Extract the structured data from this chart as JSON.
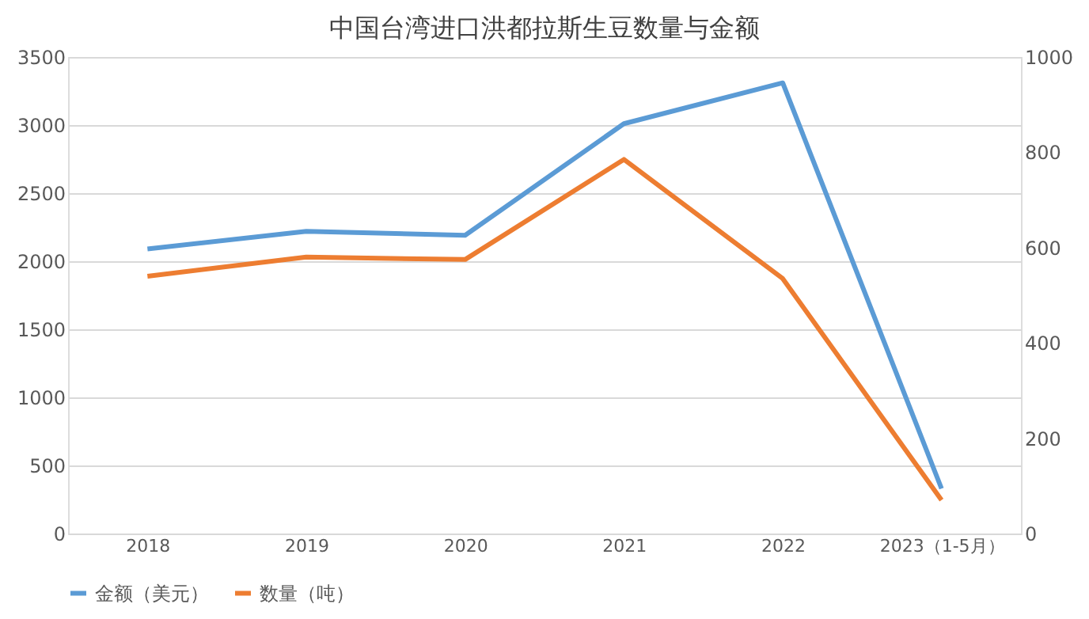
{
  "chart_data": {
    "type": "line",
    "title": "中国台湾进口洪都拉斯生豆数量与金额",
    "categories": [
      "2018",
      "2019",
      "2020",
      "2021",
      "2022",
      "2023（1-5月）"
    ],
    "series": [
      {
        "name": "金额（美元）",
        "color": "#5b9bd5",
        "values": [
          2090,
          2220,
          2190,
          3010,
          3310,
          330
        ]
      },
      {
        "name": "数量（吨）",
        "color": "#ed7d31",
        "axis": "y2",
        "values": [
          540,
          580,
          575,
          785,
          535,
          70
        ]
      }
    ],
    "ylim": [
      0,
      3500
    ],
    "yticks": [
      0,
      500,
      1000,
      1500,
      2000,
      2500,
      3000,
      3500
    ],
    "y2lim": [
      0,
      1000
    ],
    "y2ticks": [
      0,
      200,
      400,
      600,
      800,
      1000
    ],
    "grid": "y",
    "legend": "bottom",
    "marker": "none",
    "line_style": "solid"
  }
}
